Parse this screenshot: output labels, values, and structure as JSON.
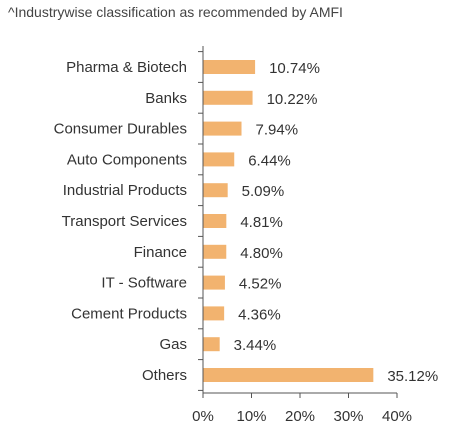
{
  "chart_data": {
    "type": "bar",
    "orientation": "horizontal",
    "title": "^Industrywise classification as recommended by AMFI",
    "categories": [
      "Pharma & Biotech",
      "Banks",
      "Consumer Durables",
      "Auto Components",
      "Industrial Products",
      "Transport Services",
      "Finance",
      "IT - Software",
      "Cement Products",
      "Gas",
      "Others"
    ],
    "values": [
      10.74,
      10.22,
      7.94,
      6.44,
      5.09,
      4.81,
      4.8,
      4.52,
      4.36,
      3.44,
      35.12
    ],
    "value_labels": [
      "10.74%",
      "10.22%",
      "7.94%",
      "6.44%",
      "5.09%",
      "4.81%",
      "4.80%",
      "4.52%",
      "4.36%",
      "3.44%",
      "35.12%"
    ],
    "xticks": [
      0,
      10,
      20,
      30,
      40
    ],
    "xtick_labels": [
      "0%",
      "10%",
      "20%",
      "30%",
      "40%"
    ],
    "xlim": [
      0,
      40
    ],
    "grid": false,
    "bar_color": "#F2B36F",
    "axis_color": "#555555"
  }
}
